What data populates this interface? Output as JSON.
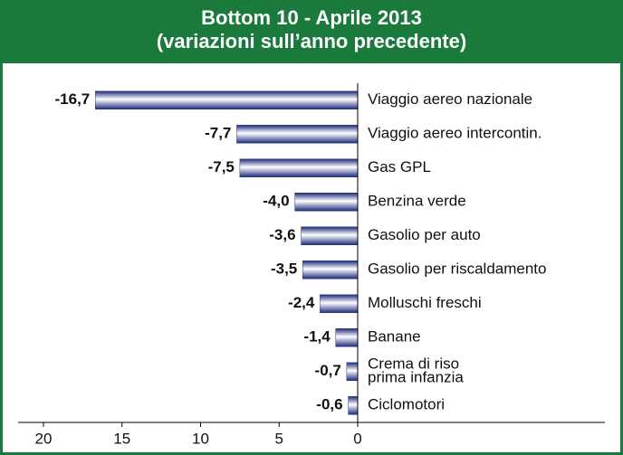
{
  "chart_data": {
    "type": "bar",
    "orientation": "horizontal",
    "title": "Bottom 10 - Aprile 2013",
    "subtitle": "(variazioni sull’anno precedente)",
    "categories": [
      "Viaggio aereo nazionale",
      "Viaggio aereo intercontin.",
      "Gas GPL",
      "Benzina verde",
      "Gasolio per auto",
      "Gasolio per riscaldamento",
      "Molluschi freschi",
      "Banane",
      [
        "Crema di riso",
        "prima infanzia"
      ],
      "Ciclomotori"
    ],
    "values": [
      -16.7,
      -7.7,
      -7.5,
      -4.0,
      -3.6,
      -3.5,
      -2.4,
      -1.4,
      -0.7,
      -0.6
    ],
    "value_labels": [
      "-16,7",
      "-7,7",
      "-7,5",
      "-4,0",
      "-3,6",
      "-3,5",
      "-2,4",
      "-1,4",
      "-0,7",
      "-0,6"
    ],
    "color": "#2b3990",
    "xlim": [
      -20,
      0
    ],
    "xticks": [
      {
        "value": -20,
        "label": "20"
      },
      {
        "value": -15,
        "label": "15"
      },
      {
        "value": -10,
        "label": "10"
      },
      {
        "value": -5,
        "label": "5"
      },
      0
    ]
  }
}
